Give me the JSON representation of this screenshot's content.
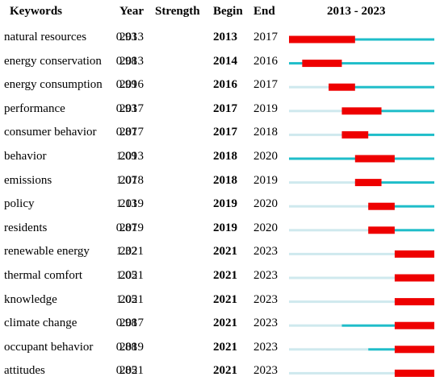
{
  "headers": {
    "keywords": "Keywords",
    "year": "Year",
    "strength": "Strength",
    "begin": "Begin",
    "end": "End",
    "range": "2013 - 2023"
  },
  "colors": {
    "burst": "#ee0000",
    "active": "#1fbdc9",
    "inactive": "#cfe9ee"
  },
  "chart_data": {
    "type": "table",
    "timeline_start": 2013,
    "timeline_end": 2023,
    "rows": [
      {
        "keyword": "natural resources",
        "year": "2013",
        "strength": "0.93",
        "begin": "2013",
        "end": "2017"
      },
      {
        "keyword": "energy conservation",
        "year": "2013",
        "strength": "0.98",
        "begin": "2014",
        "end": "2016"
      },
      {
        "keyword": "energy consumption",
        "year": "2016",
        "strength": "0.99",
        "begin": "2016",
        "end": "2017"
      },
      {
        "keyword": "performance",
        "year": "2017",
        "strength": "0.93",
        "begin": "2017",
        "end": "2019"
      },
      {
        "keyword": "consumer behavior",
        "year": "2017",
        "strength": "0.87",
        "begin": "2017",
        "end": "2018"
      },
      {
        "keyword": "behavior",
        "year": "2013",
        "strength": "1.09",
        "begin": "2018",
        "end": "2020"
      },
      {
        "keyword": "emissions",
        "year": "2018",
        "strength": "1.07",
        "begin": "2018",
        "end": "2019"
      },
      {
        "keyword": "policy",
        "year": "2019",
        "strength": "1.13",
        "begin": "2019",
        "end": "2020"
      },
      {
        "keyword": "residents",
        "year": "2019",
        "strength": "0.87",
        "begin": "2019",
        "end": "2020"
      },
      {
        "keyword": "renewable energy",
        "year": "2021",
        "strength": "1.32",
        "begin": "2021",
        "end": "2023"
      },
      {
        "keyword": "thermal comfort",
        "year": "2021",
        "strength": "1.05",
        "begin": "2021",
        "end": "2023"
      },
      {
        "keyword": "knowledge",
        "year": "2021",
        "strength": "1.05",
        "begin": "2021",
        "end": "2023"
      },
      {
        "keyword": "climate change",
        "year": "2017",
        "strength": "0.98",
        "begin": "2021",
        "end": "2023"
      },
      {
        "keyword": "occupant behavior",
        "year": "2019",
        "strength": "0.88",
        "begin": "2021",
        "end": "2023"
      },
      {
        "keyword": "attitudes",
        "year": "2021",
        "strength": "0.85",
        "begin": "2021",
        "end": "2023"
      }
    ]
  }
}
